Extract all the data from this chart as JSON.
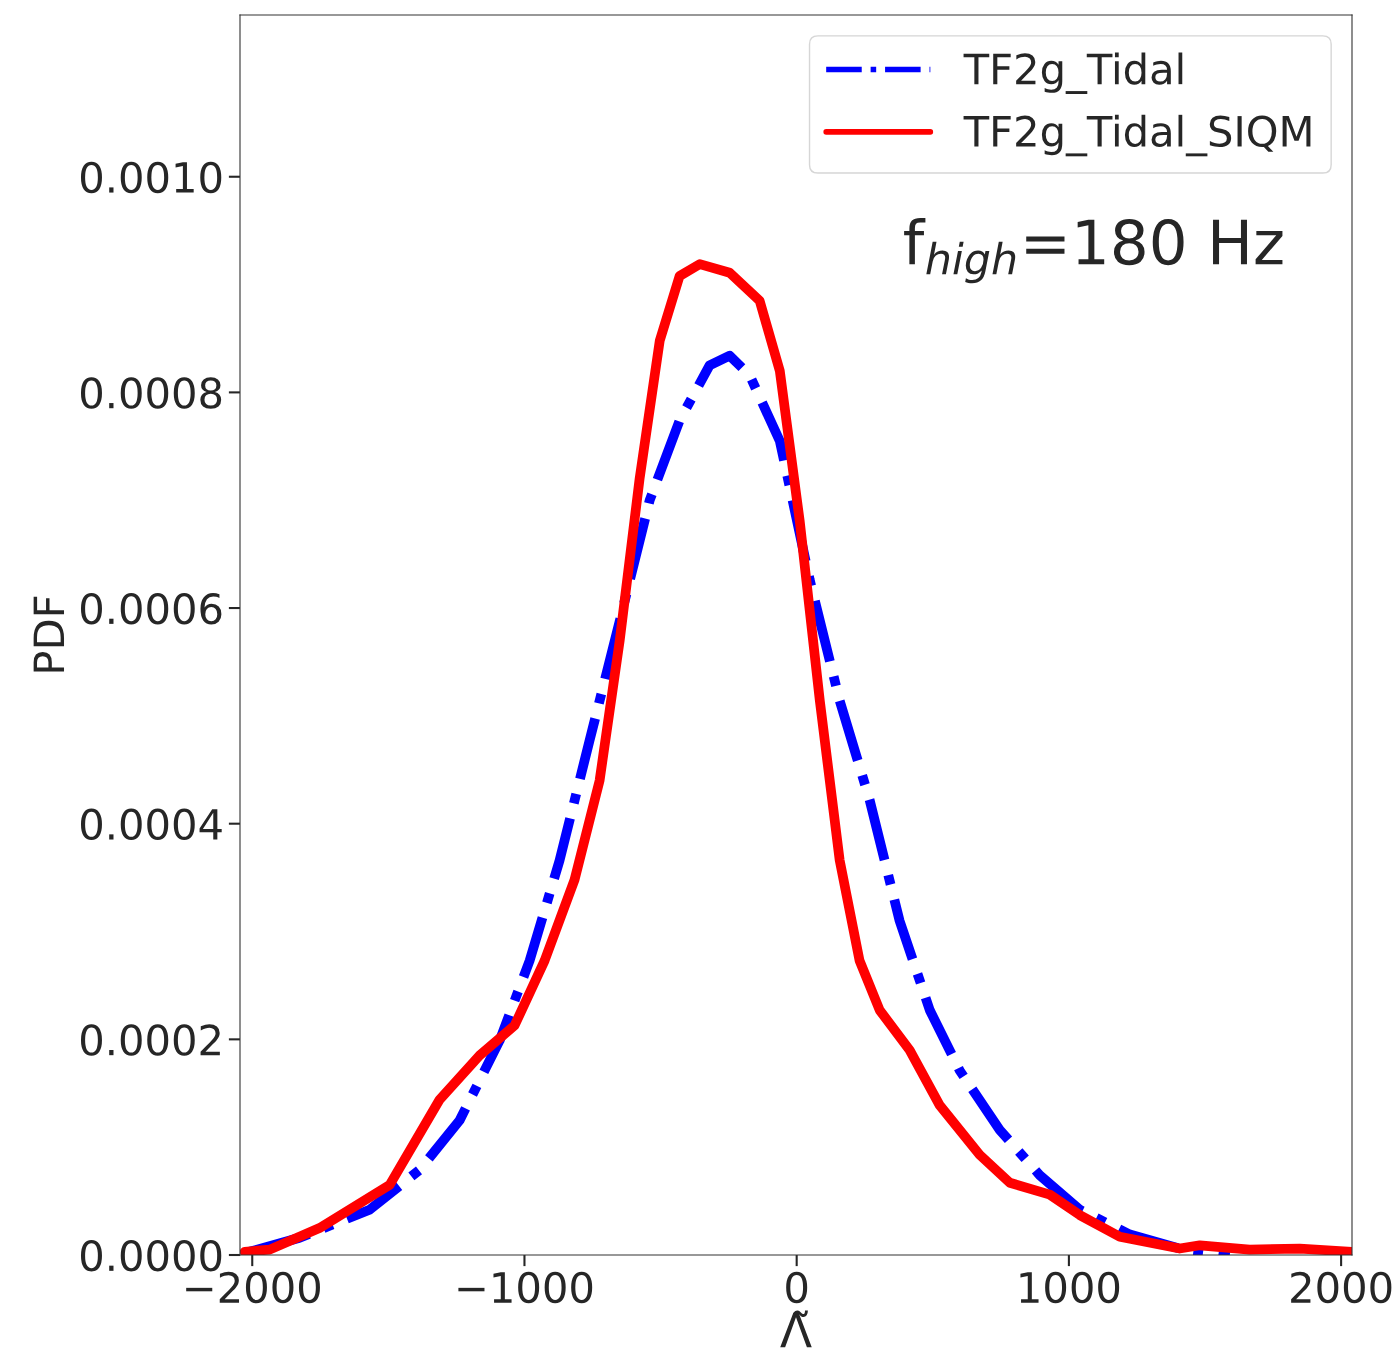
{
  "chart_data": {
    "type": "line",
    "xlabel": "Λ̃",
    "ylabel": "PDF",
    "annotations": [
      "f$_{high}$=180 Hz"
    ],
    "xlim": [
      -2045,
      2040
    ],
    "ylim": [
      0,
      0.00115
    ],
    "xticks": [
      {
        "value": -2000,
        "label": "−2000"
      },
      {
        "value": -1000,
        "label": "−1000"
      },
      0,
      1000,
      2000
    ],
    "yticks": [
      {
        "value": 0,
        "label": "0.0000"
      },
      {
        "value": 0.0002,
        "label": "0.0002"
      },
      {
        "value": 0.0004,
        "label": "0.0004"
      },
      {
        "value": 0.0006,
        "label": "0.0006"
      },
      {
        "value": 0.0008,
        "label": "0.0008"
      },
      {
        "value": 0.001,
        "label": "0.0010"
      }
    ],
    "grid": false,
    "legend": "top right",
    "series": [
      {
        "name": "TF2g_Tidal",
        "color": "#0000ff",
        "line_style": "dashdot",
        "x": [
          -2010,
          -1826,
          -1569,
          -1385,
          -1238,
          -1091,
          -981,
          -871,
          -761,
          -650,
          -540,
          -430,
          -320,
          -246,
          -173,
          -62,
          48,
          158,
          268,
          378,
          489,
          599,
          746,
          893,
          1040,
          1224,
          1407,
          1591
        ],
        "values": [
          3e-06,
          1.6e-05,
          4.2e-05,
          7.9e-05,
          0.000125,
          0.000199,
          0.000273,
          0.000366,
          0.000477,
          0.000588,
          0.0007,
          0.000774,
          0.000825,
          0.000834,
          0.000816,
          0.000755,
          0.000626,
          0.000514,
          0.000422,
          0.00031,
          0.000227,
          0.000171,
          0.000116,
          7.4e-05,
          4.2e-05,
          1.9e-05,
          6e-06,
          0.0
        ]
      },
      {
        "name": "TF2g_Tidal_SIQM",
        "color": "#ff0000",
        "line_style": "solid",
        "x": [
          -2028,
          -1936,
          -1753,
          -1495,
          -1312,
          -1165,
          -1036,
          -926,
          -816,
          -724,
          -650,
          -577,
          -503,
          -430,
          -356,
          -246,
          -136,
          -62,
          11,
          85,
          158,
          231,
          305,
          415,
          525,
          672,
          783,
          930,
          1040,
          1187,
          1407,
          1481,
          1664,
          1848,
          2040
        ],
        "values": [
          3e-06,
          5e-06,
          2.5e-05,
          6.5e-05,
          0.000144,
          0.000185,
          0.000213,
          0.000273,
          0.000348,
          0.00044,
          0.00057,
          0.00072,
          0.000848,
          0.000908,
          0.000919,
          0.000911,
          0.000885,
          0.00082,
          0.000681,
          0.000514,
          0.000366,
          0.000273,
          0.000227,
          0.00019,
          0.000139,
          9.3e-05,
          6.7e-05,
          5.6e-05,
          3.7e-05,
          1.7e-05,
          6e-06,
          9e-06,
          5e-06,
          6e-06,
          3e-06
        ]
      }
    ]
  }
}
